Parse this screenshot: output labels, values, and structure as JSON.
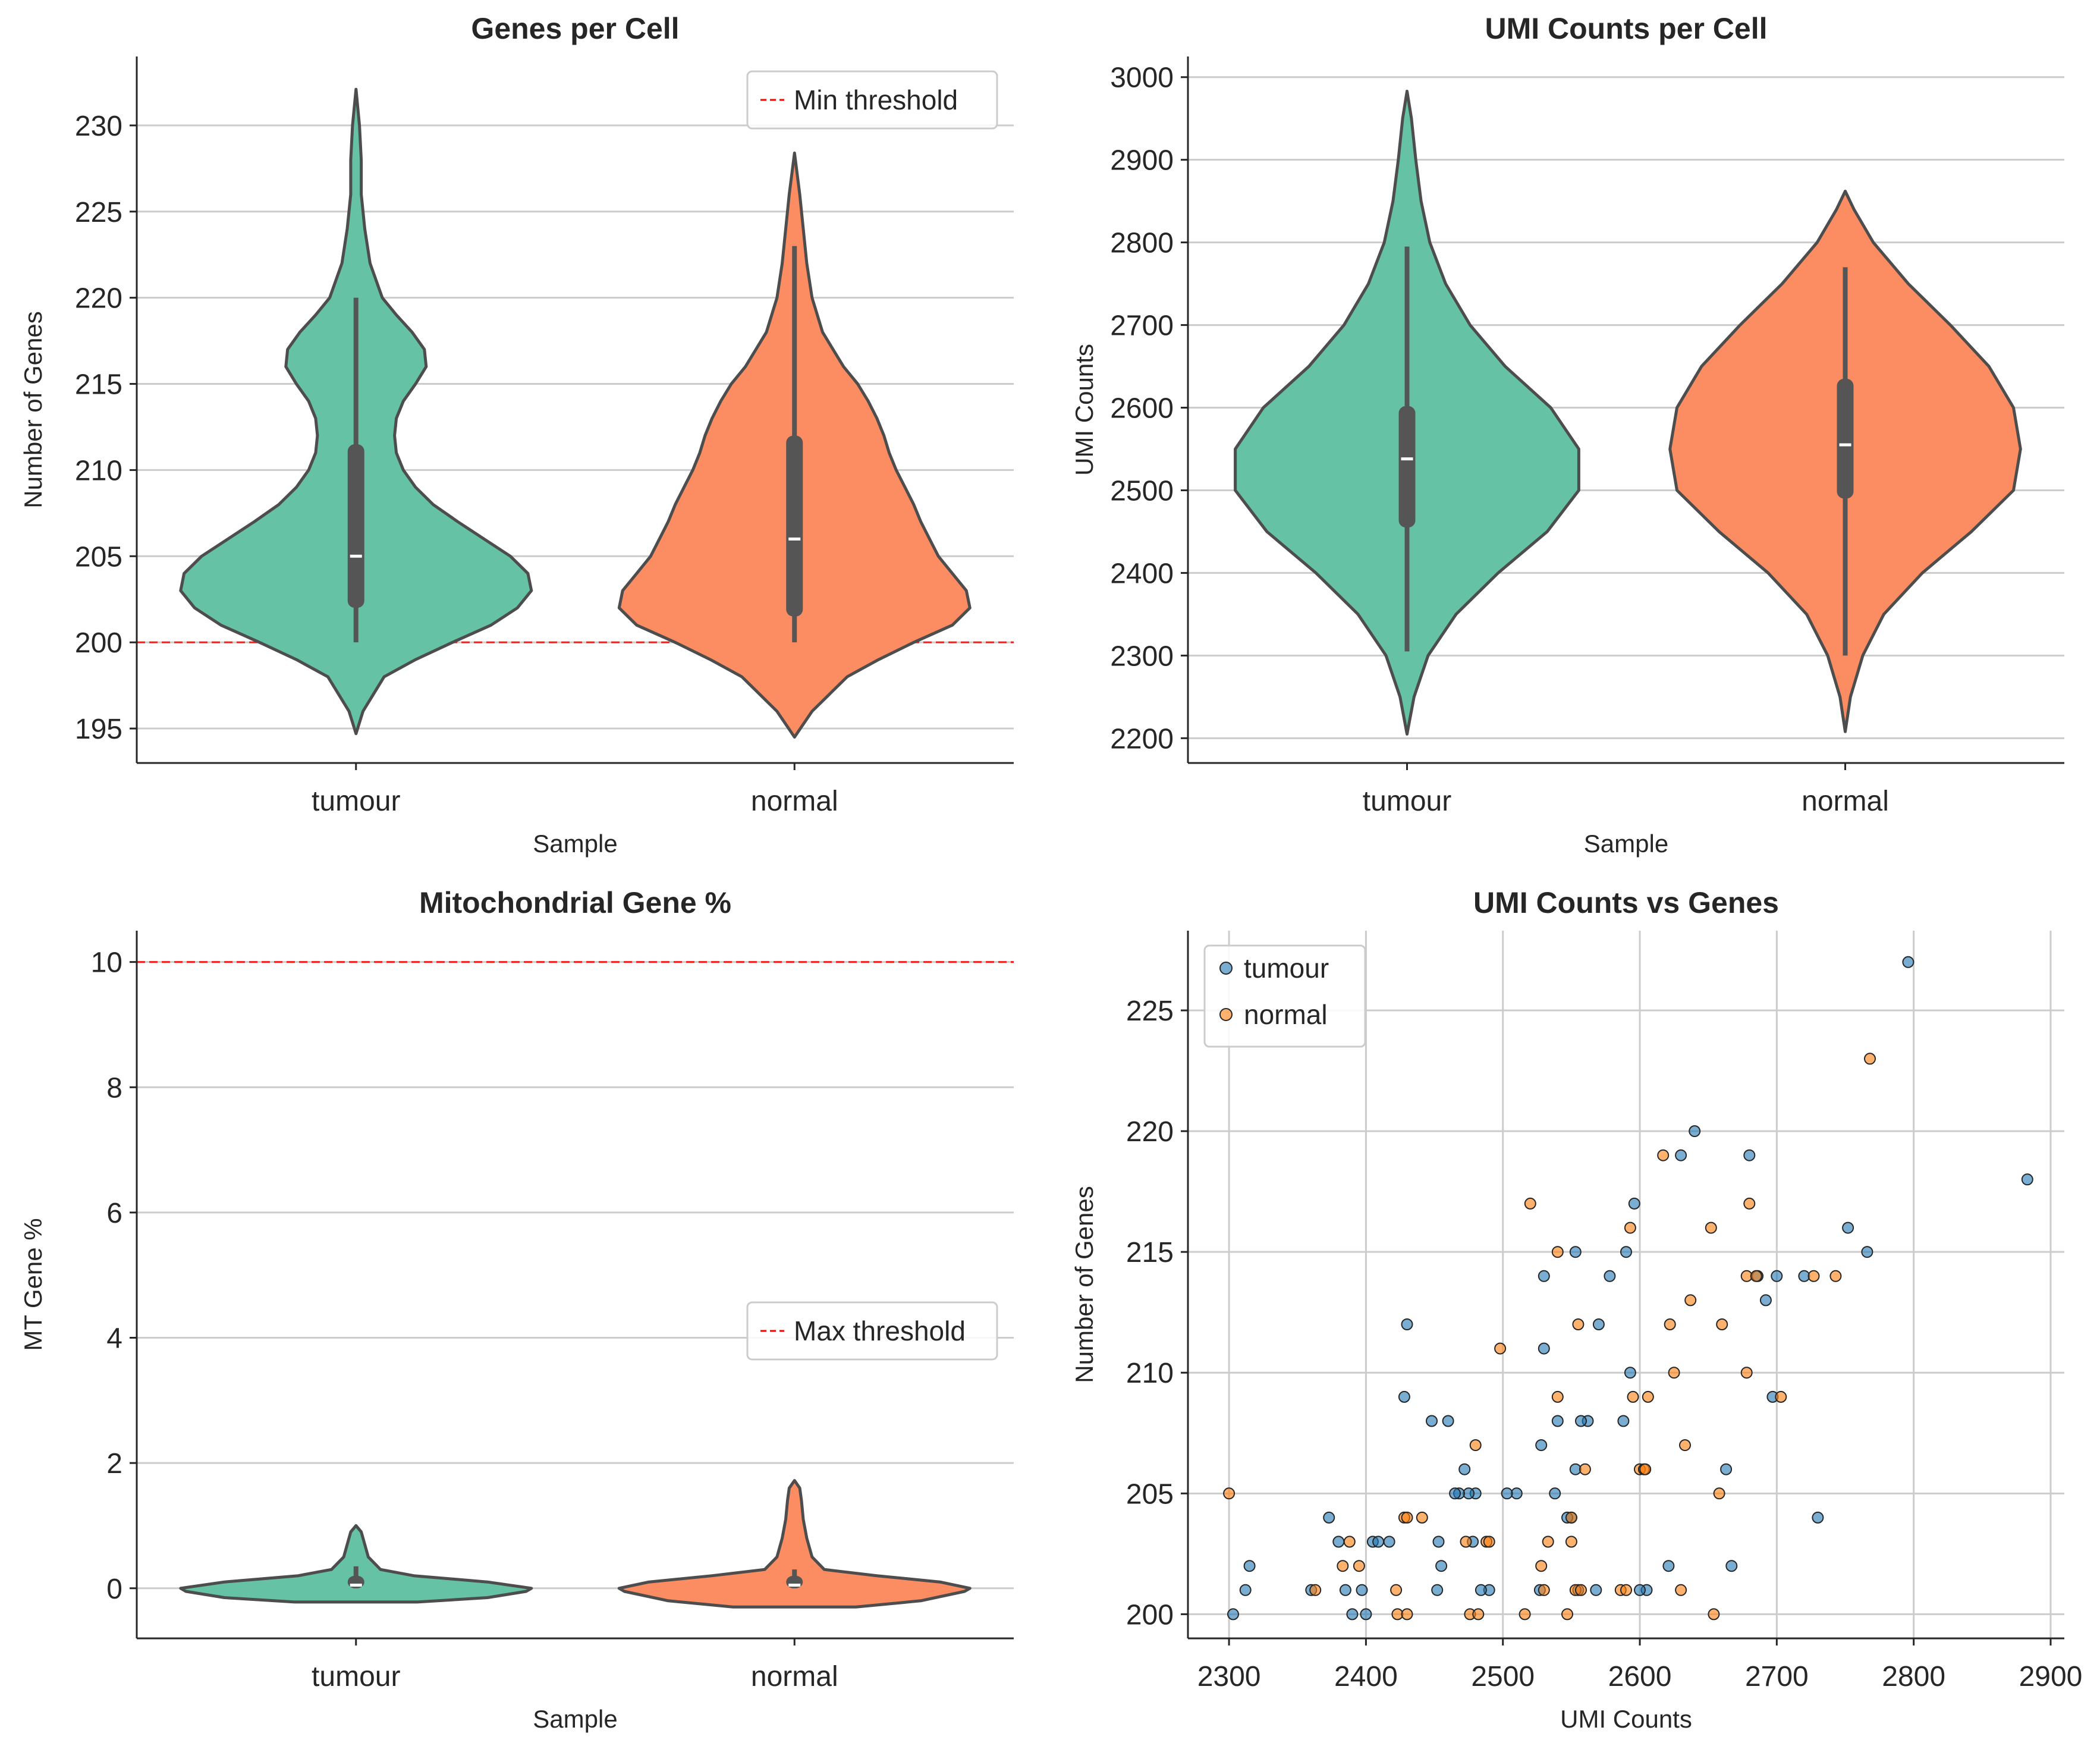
{
  "chart_data": [
    {
      "type": "violin",
      "title": "Genes per Cell",
      "xlabel": "Sample",
      "ylabel": "Number of Genes",
      "categories": [
        "tumour",
        "normal"
      ],
      "ylim": [
        193,
        234
      ],
      "yticks": [
        195,
        200,
        205,
        210,
        215,
        220,
        225,
        230
      ],
      "grid": "horizontal",
      "colors": [
        "#66c2a5",
        "#fc8d62"
      ],
      "reference_line": {
        "y": 200,
        "label": "Min threshold",
        "color": "#ff0000",
        "style": "dashed"
      },
      "legend_position": "top-right",
      "violins": [
        {
          "name": "tumour",
          "y": [
            194.7,
            196,
            198,
            199,
            200,
            201,
            202,
            203,
            204,
            205,
            206,
            207,
            208,
            209,
            210,
            211,
            212,
            213,
            214,
            215,
            216,
            217,
            218,
            219,
            220,
            222,
            224,
            226,
            228,
            230,
            232.1
          ],
          "halfwidth": [
            0,
            0.04,
            0.16,
            0.34,
            0.55,
            0.77,
            0.92,
            1.0,
            0.98,
            0.88,
            0.73,
            0.58,
            0.44,
            0.34,
            0.27,
            0.23,
            0.22,
            0.23,
            0.27,
            0.34,
            0.4,
            0.39,
            0.32,
            0.23,
            0.15,
            0.08,
            0.05,
            0.03,
            0.03,
            0.02,
            0
          ]
        },
        {
          "name": "normal",
          "y": [
            194.5,
            196,
            198,
            199,
            200,
            201,
            202,
            203,
            204,
            205,
            206,
            207,
            208,
            209,
            210,
            211,
            212,
            213,
            214,
            215,
            216,
            218,
            220,
            222,
            224,
            226,
            228.4
          ],
          "halfwidth": [
            0,
            0.1,
            0.3,
            0.48,
            0.68,
            0.9,
            1.0,
            0.98,
            0.9,
            0.82,
            0.77,
            0.72,
            0.68,
            0.63,
            0.58,
            0.54,
            0.51,
            0.47,
            0.42,
            0.36,
            0.28,
            0.16,
            0.1,
            0.07,
            0.05,
            0.03,
            0
          ]
        }
      ],
      "boxes": [
        {
          "name": "tumour",
          "whisker": [
            200,
            220
          ],
          "q1": 202,
          "median": 205,
          "q3": 211.5
        },
        {
          "name": "normal",
          "whisker": [
            200,
            223
          ],
          "q1": 201.5,
          "median": 206,
          "q3": 212
        }
      ]
    },
    {
      "type": "violin",
      "title": "UMI Counts per Cell",
      "xlabel": "Sample",
      "ylabel": "UMI Counts",
      "categories": [
        "tumour",
        "normal"
      ],
      "ylim": [
        2170,
        3025
      ],
      "yticks": [
        2200,
        2300,
        2400,
        2500,
        2600,
        2700,
        2800,
        2900,
        3000
      ],
      "grid": "horizontal",
      "colors": [
        "#66c2a5",
        "#fc8d62"
      ],
      "violins": [
        {
          "name": "tumour",
          "y": [
            2205,
            2250,
            2300,
            2350,
            2400,
            2450,
            2500,
            2550,
            2600,
            2650,
            2700,
            2750,
            2800,
            2850,
            2900,
            2950,
            2983
          ],
          "halfwidth": [
            0,
            0.04,
            0.12,
            0.28,
            0.52,
            0.8,
            0.98,
            0.98,
            0.82,
            0.56,
            0.36,
            0.22,
            0.13,
            0.08,
            0.05,
            0.025,
            0
          ]
        },
        {
          "name": "normal",
          "y": [
            2208,
            2250,
            2300,
            2350,
            2400,
            2450,
            2500,
            2550,
            2600,
            2650,
            2700,
            2750,
            2800,
            2840,
            2862
          ],
          "halfwidth": [
            0,
            0.03,
            0.1,
            0.22,
            0.44,
            0.72,
            0.96,
            1.0,
            0.96,
            0.82,
            0.6,
            0.36,
            0.16,
            0.05,
            0
          ]
        }
      ],
      "boxes": [
        {
          "name": "tumour",
          "whisker": [
            2305,
            2795
          ],
          "q1": 2455,
          "median": 2538,
          "q3": 2602
        },
        {
          "name": "normal",
          "whisker": [
            2300,
            2770
          ],
          "q1": 2490,
          "median": 2555,
          "q3": 2635
        }
      ]
    },
    {
      "type": "violin",
      "title": "Mitochondrial Gene %",
      "xlabel": "Sample",
      "ylabel": "MT Gene %",
      "categories": [
        "tumour",
        "normal"
      ],
      "ylim": [
        -0.8,
        10.5
      ],
      "yticks": [
        0,
        2,
        4,
        6,
        8,
        10
      ],
      "grid": "horizontal",
      "colors": [
        "#66c2a5",
        "#fc8d62"
      ],
      "reference_line": {
        "y": 10,
        "label": "Max threshold",
        "color": "#ff0000",
        "style": "dashed"
      },
      "legend_position": "center-right",
      "violins": [
        {
          "name": "tumour",
          "y": [
            -0.22,
            -0.15,
            -0.05,
            0,
            0.1,
            0.2,
            0.3,
            0.5,
            0.7,
            0.9,
            1.0
          ],
          "halfwidth": [
            0.35,
            0.75,
            0.97,
            1.0,
            0.75,
            0.33,
            0.14,
            0.07,
            0.05,
            0.03,
            0
          ]
        },
        {
          "name": "normal",
          "y": [
            -0.3,
            -0.2,
            -0.05,
            0,
            0.1,
            0.2,
            0.3,
            0.5,
            0.8,
            1.1,
            1.4,
            1.6,
            1.72
          ],
          "halfwidth": [
            0.35,
            0.72,
            0.97,
            1.0,
            0.83,
            0.47,
            0.17,
            0.1,
            0.07,
            0.05,
            0.04,
            0.03,
            0
          ]
        }
      ],
      "boxes": [
        {
          "name": "tumour",
          "whisker": [
            0,
            0.35
          ],
          "q1": 0,
          "median": 0.05,
          "q3": 0.2
        },
        {
          "name": "normal",
          "whisker": [
            0,
            0.3
          ],
          "q1": 0,
          "median": 0.05,
          "q3": 0.2
        }
      ]
    },
    {
      "type": "scatter",
      "title": "UMI Counts vs Genes",
      "xlabel": "UMI Counts",
      "ylabel": "Number of Genes",
      "xlim": [
        2270,
        2910
      ],
      "ylim": [
        199,
        228.3
      ],
      "xticks": [
        2300,
        2400,
        2500,
        2600,
        2700,
        2800,
        2900
      ],
      "yticks": [
        200,
        205,
        210,
        215,
        220,
        225
      ],
      "grid": "both",
      "legend_position": "top-left",
      "series": [
        {
          "name": "tumour",
          "color": "#1f77b4",
          "points": [
            [
              2796,
              227
            ],
            [
              2883,
              218
            ],
            [
              2766,
              215
            ],
            [
              2752,
              216
            ],
            [
              2730,
              204
            ],
            [
              2720,
              214
            ],
            [
              2700,
              214
            ],
            [
              2697,
              209
            ],
            [
              2692,
              213
            ],
            [
              2680,
              219
            ],
            [
              2686,
              214
            ],
            [
              2667,
              202
            ],
            [
              2663,
              206
            ],
            [
              2640,
              220
            ],
            [
              2630,
              219
            ],
            [
              2621,
              202
            ],
            [
              2605,
              201
            ],
            [
              2600,
              201
            ],
            [
              2596,
              217
            ],
            [
              2593,
              210
            ],
            [
              2590,
              215
            ],
            [
              2588,
              208
            ],
            [
              2578,
              214
            ],
            [
              2570,
              212
            ],
            [
              2568,
              201
            ],
            [
              2562,
              208
            ],
            [
              2557,
              208
            ],
            [
              2555,
              201
            ],
            [
              2553,
              215
            ],
            [
              2553,
              206
            ],
            [
              2550,
              204
            ],
            [
              2547,
              204
            ],
            [
              2540,
              208
            ],
            [
              2538,
              205
            ],
            [
              2530,
              211
            ],
            [
              2530,
              214
            ],
            [
              2528,
              207
            ],
            [
              2527,
              201
            ],
            [
              2510,
              205
            ],
            [
              2503,
              205
            ],
            [
              2490,
              201
            ],
            [
              2484,
              201
            ],
            [
              2480,
              205
            ],
            [
              2478,
              203
            ],
            [
              2475,
              205
            ],
            [
              2472,
              206
            ],
            [
              2468,
              205
            ],
            [
              2465,
              205
            ],
            [
              2460,
              208
            ],
            [
              2455,
              202
            ],
            [
              2453,
              203
            ],
            [
              2452,
              201
            ],
            [
              2448,
              208
            ],
            [
              2430,
              212
            ],
            [
              2428,
              209
            ],
            [
              2400,
              200
            ],
            [
              2397,
              201
            ],
            [
              2390,
              200
            ],
            [
              2385,
              201
            ],
            [
              2380,
              203
            ],
            [
              2373,
              204
            ],
            [
              2360,
              201
            ],
            [
              2315,
              202
            ],
            [
              2312,
              201
            ],
            [
              2303,
              200
            ],
            [
              2405,
              203
            ],
            [
              2409,
              203
            ],
            [
              2417,
              203
            ]
          ]
        },
        {
          "name": "normal",
          "color": "#ff7f0e",
          "points": [
            [
              2300,
              205
            ],
            [
              2363,
              201
            ],
            [
              2383,
              202
            ],
            [
              2388,
              203
            ],
            [
              2395,
              202
            ],
            [
              2422,
              201
            ],
            [
              2423,
              200
            ],
            [
              2430,
              200
            ],
            [
              2428,
              204
            ],
            [
              2430,
              204
            ],
            [
              2441,
              204
            ],
            [
              2473,
              203
            ],
            [
              2476,
              200
            ],
            [
              2480,
              207
            ],
            [
              2482,
              200
            ],
            [
              2488,
              203
            ],
            [
              2490,
              203
            ],
            [
              2498,
              211
            ],
            [
              2516,
              200
            ],
            [
              2520,
              217
            ],
            [
              2528,
              202
            ],
            [
              2530,
              201
            ],
            [
              2533,
              203
            ],
            [
              2540,
              209
            ],
            [
              2540,
              215
            ],
            [
              2547,
              200
            ],
            [
              2550,
              203
            ],
            [
              2550,
              204
            ],
            [
              2553,
              201
            ],
            [
              2555,
              212
            ],
            [
              2557,
              201
            ],
            [
              2560,
              206
            ],
            [
              2586,
              201
            ],
            [
              2590,
              201
            ],
            [
              2593,
              216
            ],
            [
              2595,
              209
            ],
            [
              2600,
              206
            ],
            [
              2603,
              206
            ],
            [
              2604,
              206
            ],
            [
              2606,
              209
            ],
            [
              2617,
              219
            ],
            [
              2622,
              212
            ],
            [
              2625,
              210
            ],
            [
              2630,
              201
            ],
            [
              2633,
              207
            ],
            [
              2637,
              213
            ],
            [
              2652,
              216
            ],
            [
              2654,
              200
            ],
            [
              2658,
              205
            ],
            [
              2660,
              212
            ],
            [
              2678,
              210
            ],
            [
              2680,
              217
            ],
            [
              2678,
              214
            ],
            [
              2685,
              214
            ],
            [
              2703,
              209
            ],
            [
              2727,
              214
            ],
            [
              2743,
              214
            ],
            [
              2768,
              223
            ]
          ]
        }
      ]
    }
  ]
}
